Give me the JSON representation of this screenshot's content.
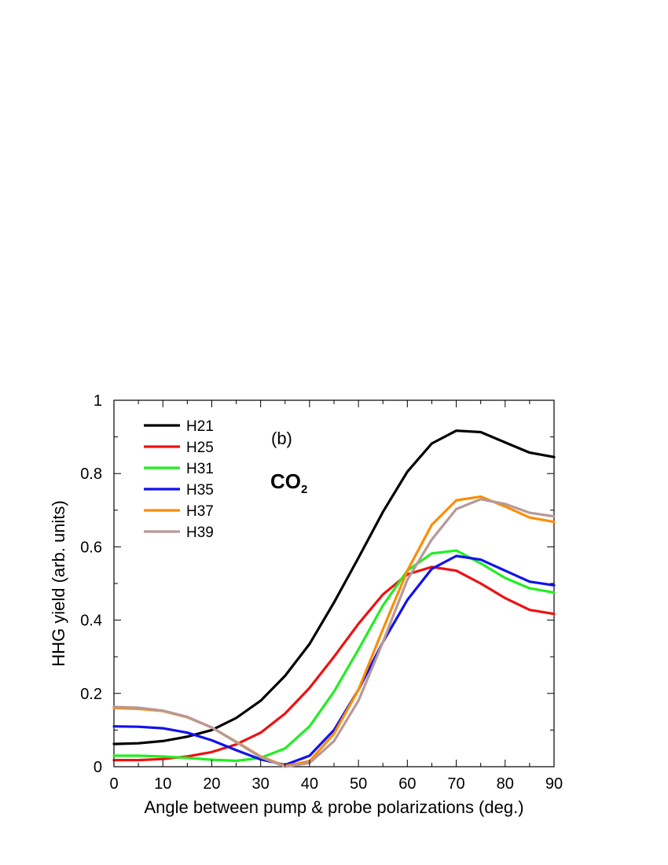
{
  "chart_data": {
    "type": "line",
    "xlabel": "Angle between pump & probe polarizations (deg.)",
    "ylabel": "HHG yield (arb. units)",
    "xlim": [
      0,
      90
    ],
    "ylim": [
      0,
      1
    ],
    "xticks": [
      0,
      10,
      20,
      30,
      40,
      50,
      60,
      70,
      80,
      90
    ],
    "yticks": [
      0,
      0.2,
      0.4,
      0.6,
      0.8,
      1
    ],
    "ytick_labels": [
      "0",
      "0.2",
      "0.4",
      "0.6",
      "0.8",
      "1"
    ],
    "grid": false,
    "legend_position": "top-left",
    "annotations": {
      "panel_label": "(b)",
      "molecule": {
        "base": "CO",
        "subscript": "2"
      }
    },
    "x": [
      0,
      5,
      10,
      15,
      20,
      25,
      30,
      35,
      40,
      45,
      50,
      55,
      60,
      65,
      70,
      75,
      80,
      85,
      90
    ],
    "series": [
      {
        "name": "H21",
        "color": "#000000",
        "values": [
          0.062,
          0.064,
          0.07,
          0.082,
          0.1,
          0.133,
          0.18,
          0.248,
          0.335,
          0.448,
          0.57,
          0.695,
          0.805,
          0.882,
          0.917,
          0.913,
          0.885,
          0.857,
          0.845
        ]
      },
      {
        "name": "H25",
        "color": "#ee1111",
        "values": [
          0.018,
          0.018,
          0.021,
          0.028,
          0.04,
          0.061,
          0.093,
          0.145,
          0.215,
          0.3,
          0.39,
          0.47,
          0.525,
          0.545,
          0.535,
          0.5,
          0.46,
          0.428,
          0.417
        ]
      },
      {
        "name": "H31",
        "color": "#22ee22",
        "values": [
          0.03,
          0.03,
          0.028,
          0.024,
          0.019,
          0.016,
          0.024,
          0.05,
          0.11,
          0.205,
          0.32,
          0.44,
          0.535,
          0.582,
          0.59,
          0.555,
          0.515,
          0.487,
          0.475
        ]
      },
      {
        "name": "H35",
        "color": "#1111ee",
        "values": [
          0.11,
          0.109,
          0.105,
          0.093,
          0.072,
          0.045,
          0.02,
          0.005,
          0.03,
          0.1,
          0.21,
          0.34,
          0.455,
          0.54,
          0.575,
          0.565,
          0.535,
          0.505,
          0.495
        ]
      },
      {
        "name": "H37",
        "color": "#ff8c00",
        "values": [
          0.16,
          0.158,
          0.152,
          0.135,
          0.107,
          0.068,
          0.028,
          0.002,
          0.015,
          0.09,
          0.21,
          0.375,
          0.535,
          0.66,
          0.727,
          0.737,
          0.71,
          0.68,
          0.668
        ]
      },
      {
        "name": "H39",
        "color": "#b89898",
        "values": [
          0.163,
          0.161,
          0.153,
          0.136,
          0.107,
          0.067,
          0.026,
          0.0,
          0.01,
          0.07,
          0.18,
          0.34,
          0.51,
          0.62,
          0.703,
          0.73,
          0.717,
          0.693,
          0.683
        ]
      }
    ]
  }
}
